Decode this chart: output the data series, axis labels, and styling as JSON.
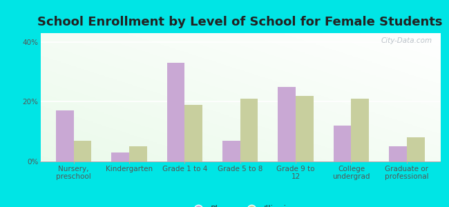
{
  "title": "School Enrollment by Level of School for Female Students",
  "categories": [
    "Nursery,\npreschool",
    "Kindergarten",
    "Grade 1 to 4",
    "Grade 5 to 8",
    "Grade 9 to\n12",
    "College\nundergrad",
    "Graduate or\nprofessional"
  ],
  "plano": [
    17,
    3,
    33,
    7,
    25,
    12,
    5
  ],
  "illinois": [
    7,
    5,
    19,
    21,
    22,
    21,
    8
  ],
  "plano_color": "#c9a8d4",
  "illinois_color": "#c8cf9e",
  "background_outer": "#00e5e5",
  "background_inner": "#eef5e8",
  "yticks": [
    0,
    20,
    40
  ],
  "ylim": [
    0,
    43
  ],
  "bar_width": 0.32,
  "title_fontsize": 13,
  "tick_fontsize": 7.5,
  "legend_fontsize": 9,
  "watermark": "City-Data.com"
}
